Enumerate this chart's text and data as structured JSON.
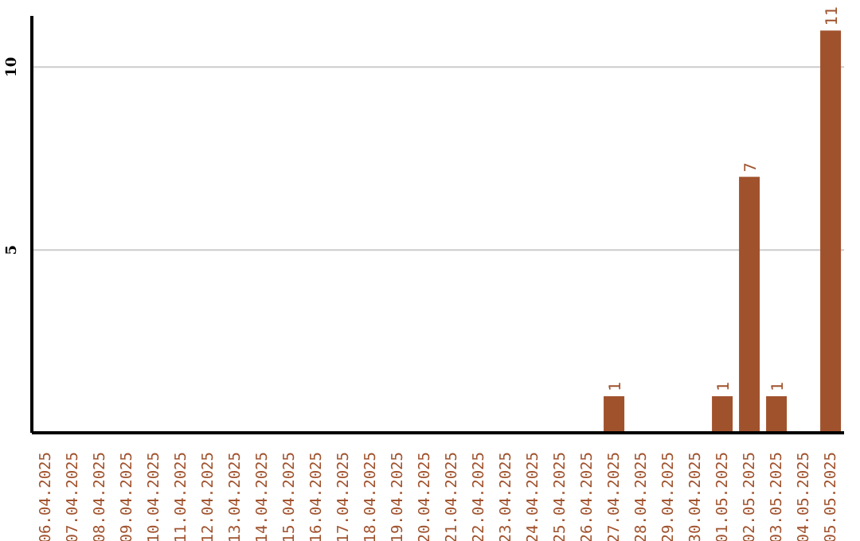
{
  "chart_data": {
    "type": "bar",
    "categories": [
      "06.04.2025",
      "07.04.2025",
      "08.04.2025",
      "09.04.2025",
      "10.04.2025",
      "11.04.2025",
      "12.04.2025",
      "13.04.2025",
      "14.04.2025",
      "15.04.2025",
      "16.04.2025",
      "17.04.2025",
      "18.04.2025",
      "19.04.2025",
      "20.04.2025",
      "21.04.2025",
      "22.04.2025",
      "23.04.2025",
      "24.04.2025",
      "25.04.2025",
      "26.04.2025",
      "27.04.2025",
      "28.04.2025",
      "29.04.2025",
      "30.04.2025",
      "01.05.2025",
      "02.05.2025",
      "03.05.2025",
      "04.05.2025",
      "05.05.2025"
    ],
    "values": [
      0,
      0,
      0,
      0,
      0,
      0,
      0,
      0,
      0,
      0,
      0,
      0,
      0,
      0,
      0,
      0,
      0,
      0,
      0,
      0,
      0,
      1,
      0,
      0,
      0,
      1,
      7,
      1,
      0,
      11
    ],
    "value_labels": [
      null,
      null,
      null,
      null,
      null,
      null,
      null,
      null,
      null,
      null,
      null,
      null,
      null,
      null,
      null,
      null,
      null,
      null,
      null,
      null,
      null,
      "1",
      null,
      null,
      null,
      "1",
      "7",
      "1",
      null,
      "11"
    ],
    "color": "#a0522d",
    "ylim": [
      0,
      11.4
    ],
    "yticks": [
      5,
      10
    ],
    "grid": "y"
  }
}
